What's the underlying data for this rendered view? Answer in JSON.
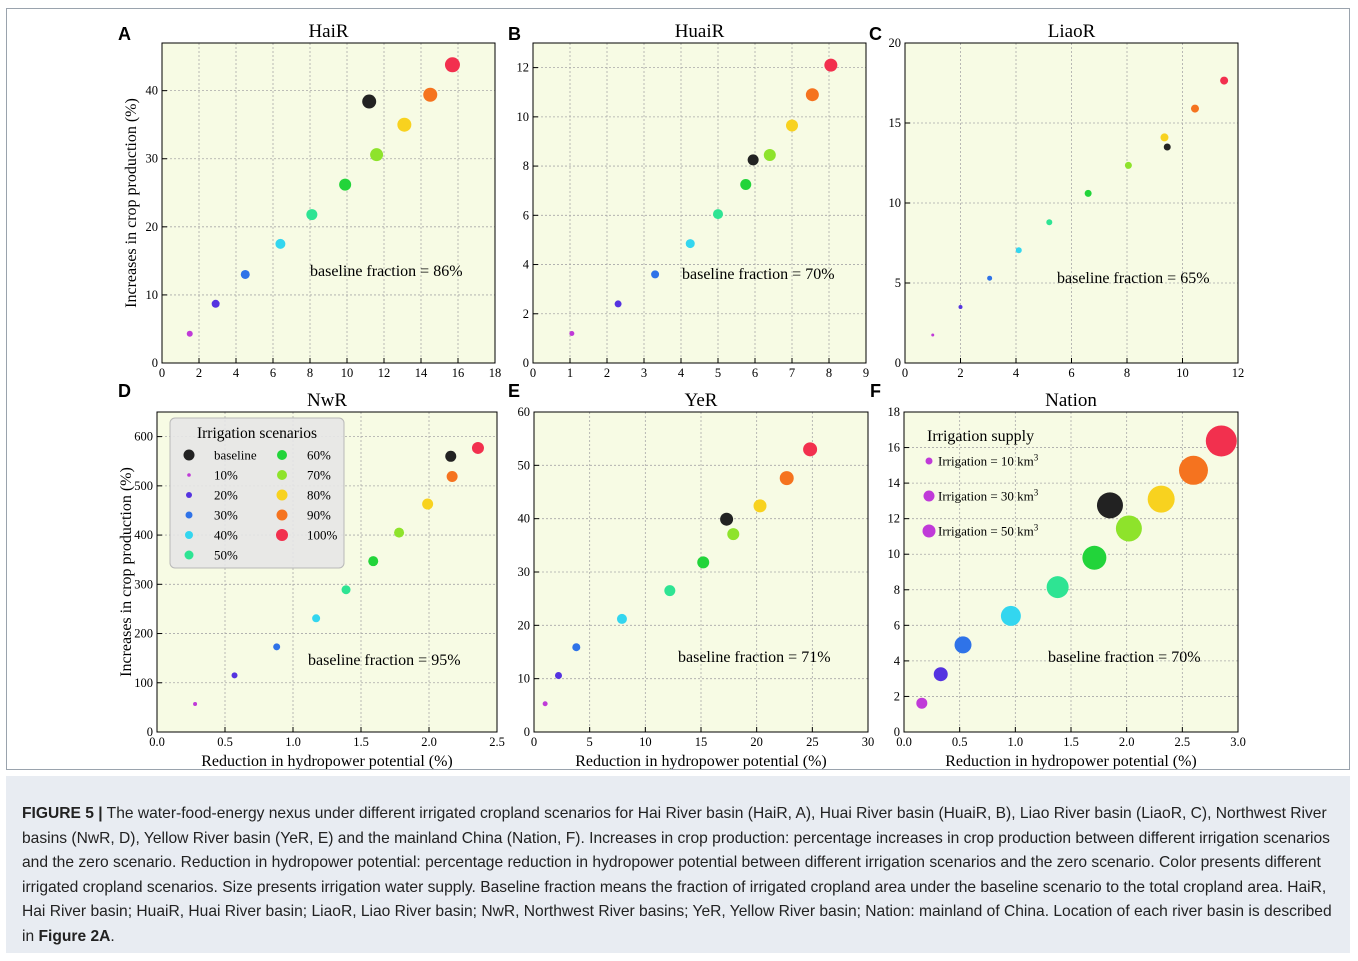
{
  "caption": {
    "label": "FIGURE 5 |",
    "text": " The water-food-energy nexus under different irrigated cropland scenarios for Hai River basin (HaiR, A), Huai River basin (HuaiR, B), Liao River basin (LiaoR, C), Northwest River basins (NwR, D), Yellow River basin (YeR, E) and the mainland China (Nation, F). Increases in crop production: percentage increases in crop production between different irrigation scenarios and the zero scenario. Reduction in hydropower potential: percentage reduction in hydropower potential between different irrigation scenarios and the zero scenario. Color presents different irrigated cropland scenarios. Size presents irrigation water supply. Baseline fraction means the fraction of irrigated cropland area under the baseline scenario to the total cropland area. HaiR, Hai River basin; HuaiR, Huai River basin; LiaoR, Liao River basin; NwR, Northwest River basins; YeR, Yellow River basin; Nation: mainland of China. Location of each river basin is described in ",
    "ref": "Figure 2A",
    "end": "."
  },
  "colors": {
    "plot_background": "#f7fbe4",
    "baseline": "#222222",
    "10%": "#c03ad8",
    "20%": "#5533e0",
    "30%": "#2f73e8",
    "40%": "#33d6ef",
    "50%": "#2ee493",
    "60%": "#22d43a",
    "70%": "#8ee32b",
    "80%": "#f8d21f",
    "90%": "#f5731f",
    "100%": "#f2304e"
  },
  "legend_scenarios": {
    "title": "Irrigation scenarios",
    "left_column": [
      "baseline",
      "10%",
      "20%",
      "30%",
      "40%",
      "50%"
    ],
    "right_column": [
      "60%",
      "70%",
      "80%",
      "90%",
      "100%"
    ]
  },
  "legend_supply": {
    "title": "Irrigation supply",
    "items": [
      {
        "label": "Irrigation = 10 km",
        "sup": "3",
        "color": "#c03ad8",
        "supply_km3": 10
      },
      {
        "label": "Irrigation = 30 km",
        "sup": "3",
        "color": "#c03ad8",
        "supply_km3": 30
      },
      {
        "label": "Irrigation = 50 km",
        "sup": "3",
        "color": "#c03ad8",
        "supply_km3": 50
      }
    ]
  },
  "chart_data": [
    {
      "panel": "A",
      "type": "scatter",
      "title": "HaiR",
      "annotation": "baseline fraction = 86%",
      "ylabel": "Increases in crop production (%)",
      "xlabel": "",
      "xlim": [
        0,
        18
      ],
      "xticks": [
        "0",
        "2",
        "4",
        "6",
        "8",
        "10",
        "12",
        "14",
        "16",
        "18"
      ],
      "ylim": [
        0,
        47
      ],
      "yticks": [
        "0",
        "10",
        "20",
        "30",
        "40"
      ],
      "points": [
        {
          "s": "10%",
          "x": 1.5,
          "y": 4.3,
          "r": 3
        },
        {
          "s": "20%",
          "x": 2.9,
          "y": 8.7,
          "r": 4
        },
        {
          "s": "30%",
          "x": 4.5,
          "y": 13.0,
          "r": 4.5
        },
        {
          "s": "40%",
          "x": 6.4,
          "y": 17.5,
          "r": 5
        },
        {
          "s": "50%",
          "x": 8.1,
          "y": 21.8,
          "r": 5.5
        },
        {
          "s": "60%",
          "x": 9.9,
          "y": 26.2,
          "r": 6
        },
        {
          "s": "70%",
          "x": 11.6,
          "y": 30.6,
          "r": 6.5
        },
        {
          "s": "80%",
          "x": 13.1,
          "y": 35.0,
          "r": 7
        },
        {
          "s": "90%",
          "x": 14.5,
          "y": 39.4,
          "r": 7
        },
        {
          "s": "100%",
          "x": 15.7,
          "y": 43.8,
          "r": 7.5
        },
        {
          "s": "baseline",
          "x": 11.2,
          "y": 38.4,
          "r": 7
        }
      ]
    },
    {
      "panel": "B",
      "type": "scatter",
      "title": "HuaiR",
      "annotation": "baseline fraction = 70%",
      "ylabel": "",
      "xlabel": "",
      "xlim": [
        0,
        9
      ],
      "xticks": [
        "0",
        "1",
        "2",
        "3",
        "4",
        "5",
        "6",
        "7",
        "8",
        "9"
      ],
      "ylim": [
        0,
        13
      ],
      "yticks": [
        "0",
        "2",
        "4",
        "6",
        "8",
        "10",
        "12"
      ],
      "points": [
        {
          "s": "10%",
          "x": 1.05,
          "y": 1.2,
          "r": 2.5
        },
        {
          "s": "20%",
          "x": 2.3,
          "y": 2.4,
          "r": 3.5
        },
        {
          "s": "30%",
          "x": 3.3,
          "y": 3.6,
          "r": 4
        },
        {
          "s": "40%",
          "x": 4.25,
          "y": 4.85,
          "r": 4.5
        },
        {
          "s": "50%",
          "x": 5.0,
          "y": 6.05,
          "r": 5
        },
        {
          "s": "60%",
          "x": 5.75,
          "y": 7.25,
          "r": 5.5
        },
        {
          "s": "70%",
          "x": 6.4,
          "y": 8.45,
          "r": 6
        },
        {
          "s": "80%",
          "x": 7.0,
          "y": 9.65,
          "r": 6
        },
        {
          "s": "90%",
          "x": 7.55,
          "y": 10.9,
          "r": 6.5
        },
        {
          "s": "100%",
          "x": 8.05,
          "y": 12.1,
          "r": 6.5
        },
        {
          "s": "baseline",
          "x": 5.95,
          "y": 8.25,
          "r": 5.5
        }
      ]
    },
    {
      "panel": "C",
      "type": "scatter",
      "title": "LiaoR",
      "annotation": "baseline fraction = 65%",
      "ylabel": "",
      "xlabel": "",
      "xlim": [
        0,
        12
      ],
      "xticks": [
        "0",
        "2",
        "4",
        "6",
        "8",
        "10",
        "12"
      ],
      "ylim": [
        0,
        20
      ],
      "yticks": [
        "0",
        "5",
        "10",
        "15",
        "20"
      ],
      "points": [
        {
          "s": "10%",
          "x": 1.0,
          "y": 1.75,
          "r": 1.5
        },
        {
          "s": "20%",
          "x": 2.0,
          "y": 3.5,
          "r": 2
        },
        {
          "s": "30%",
          "x": 3.05,
          "y": 5.3,
          "r": 2.5
        },
        {
          "s": "40%",
          "x": 4.1,
          "y": 7.05,
          "r": 3
        },
        {
          "s": "50%",
          "x": 5.2,
          "y": 8.8,
          "r": 3
        },
        {
          "s": "60%",
          "x": 6.6,
          "y": 10.6,
          "r": 3.5
        },
        {
          "s": "70%",
          "x": 8.05,
          "y": 12.35,
          "r": 3.5
        },
        {
          "s": "80%",
          "x": 9.35,
          "y": 14.1,
          "r": 4
        },
        {
          "s": "90%",
          "x": 10.45,
          "y": 15.9,
          "r": 4
        },
        {
          "s": "100%",
          "x": 11.5,
          "y": 17.65,
          "r": 4
        },
        {
          "s": "baseline",
          "x": 9.45,
          "y": 13.5,
          "r": 3.5
        }
      ]
    },
    {
      "panel": "D",
      "type": "scatter",
      "title": "NwR",
      "annotation": "baseline fraction = 95%",
      "ylabel": "Increases in crop production (%)",
      "xlabel": "Reduction in hydropower potential (%)",
      "xlim": [
        0,
        2.5
      ],
      "xticks": [
        "0.0",
        "0.5",
        "1.0",
        "1.5",
        "2.0",
        "2.5"
      ],
      "ylim": [
        0,
        650
      ],
      "yticks": [
        "0",
        "100",
        "200",
        "300",
        "400",
        "500",
        "600"
      ],
      "points": [
        {
          "s": "10%",
          "x": 0.28,
          "y": 57,
          "r": 2
        },
        {
          "s": "20%",
          "x": 0.57,
          "y": 115,
          "r": 3
        },
        {
          "s": "30%",
          "x": 0.88,
          "y": 173,
          "r": 3.5
        },
        {
          "s": "40%",
          "x": 1.17,
          "y": 231,
          "r": 4
        },
        {
          "s": "50%",
          "x": 1.39,
          "y": 289,
          "r": 4.5
        },
        {
          "s": "60%",
          "x": 1.59,
          "y": 347,
          "r": 5
        },
        {
          "s": "70%",
          "x": 1.78,
          "y": 405,
          "r": 5
        },
        {
          "s": "80%",
          "x": 1.99,
          "y": 463,
          "r": 5.5
        },
        {
          "s": "90%",
          "x": 2.17,
          "y": 519,
          "r": 5.5
        },
        {
          "s": "100%",
          "x": 2.36,
          "y": 577,
          "r": 6
        },
        {
          "s": "baseline",
          "x": 2.16,
          "y": 560,
          "r": 5.5
        }
      ]
    },
    {
      "panel": "E",
      "type": "scatter",
      "title": "YeR",
      "annotation": "baseline fraction = 71%",
      "ylabel": "",
      "xlabel": "Reduction in hydropower potential (%)",
      "xlim": [
        0,
        30
      ],
      "xticks": [
        "0",
        "5",
        "10",
        "15",
        "20",
        "25",
        "30"
      ],
      "ylim": [
        0,
        60
      ],
      "yticks": [
        "0",
        "10",
        "20",
        "30",
        "40",
        "50",
        "60"
      ],
      "points": [
        {
          "s": "10%",
          "x": 1.0,
          "y": 5.3,
          "r": 2.5
        },
        {
          "s": "20%",
          "x": 2.2,
          "y": 10.6,
          "r": 3.5
        },
        {
          "s": "30%",
          "x": 3.8,
          "y": 15.9,
          "r": 4
        },
        {
          "s": "40%",
          "x": 7.9,
          "y": 21.2,
          "r": 5
        },
        {
          "s": "50%",
          "x": 12.2,
          "y": 26.5,
          "r": 5.5
        },
        {
          "s": "60%",
          "x": 15.2,
          "y": 31.8,
          "r": 6
        },
        {
          "s": "70%",
          "x": 17.9,
          "y": 37.1,
          "r": 6
        },
        {
          "s": "80%",
          "x": 20.3,
          "y": 42.4,
          "r": 6.5
        },
        {
          "s": "90%",
          "x": 22.7,
          "y": 47.6,
          "r": 7
        },
        {
          "s": "100%",
          "x": 24.8,
          "y": 53.0,
          "r": 7
        },
        {
          "s": "baseline",
          "x": 17.3,
          "y": 39.9,
          "r": 6.5
        }
      ]
    },
    {
      "panel": "F",
      "type": "scatter",
      "title": "Nation",
      "annotation": "baseline fraction = 70%",
      "ylabel": "",
      "xlabel": "Reduction in hydropower potential (%)",
      "xlim": [
        0,
        3.0
      ],
      "xticks": [
        "0.0",
        "0.5",
        "1.0",
        "1.5",
        "2.0",
        "2.5",
        "3.0"
      ],
      "ylim": [
        0,
        18
      ],
      "yticks": [
        "0",
        "2",
        "4",
        "6",
        "8",
        "10",
        "12",
        "14",
        "16",
        "18"
      ],
      "points": [
        {
          "s": "10%",
          "x": 0.16,
          "y": 1.62,
          "r": 5.5
        },
        {
          "s": "20%",
          "x": 0.33,
          "y": 3.25,
          "r": 7
        },
        {
          "s": "30%",
          "x": 0.53,
          "y": 4.9,
          "r": 8.5
        },
        {
          "s": "40%",
          "x": 0.96,
          "y": 6.53,
          "r": 10
        },
        {
          "s": "50%",
          "x": 1.38,
          "y": 8.15,
          "r": 11
        },
        {
          "s": "60%",
          "x": 1.71,
          "y": 9.8,
          "r": 12
        },
        {
          "s": "70%",
          "x": 2.02,
          "y": 11.45,
          "r": 13
        },
        {
          "s": "80%",
          "x": 2.31,
          "y": 13.1,
          "r": 13.5
        },
        {
          "s": "90%",
          "x": 2.6,
          "y": 14.72,
          "r": 14.5
        },
        {
          "s": "100%",
          "x": 2.85,
          "y": 16.37,
          "r": 15.5
        },
        {
          "s": "baseline",
          "x": 1.85,
          "y": 12.75,
          "r": 13
        }
      ]
    }
  ]
}
